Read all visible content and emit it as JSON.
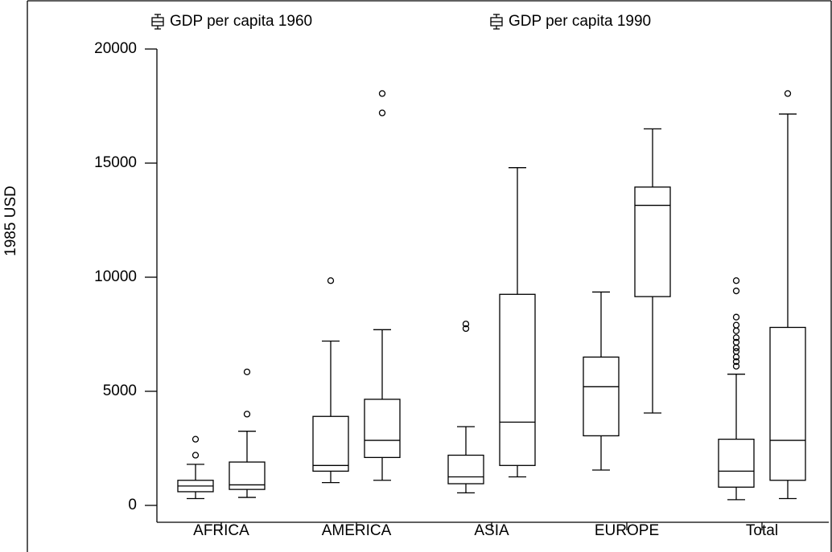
{
  "chart_data": {
    "type": "box",
    "y_label": "1985 USD",
    "categories": [
      "AFRICA",
      "AMERICA",
      "ASIA",
      "EUROPE",
      "Total"
    ],
    "ylim": [
      0,
      20000
    ],
    "yticks": [
      0,
      5000,
      10000,
      15000,
      20000
    ],
    "series": [
      {
        "name": "GDP per capita 1960",
        "color": "#000000",
        "boxes": [
          {
            "min": 300,
            "q1": 600,
            "median": 850,
            "q3": 1100,
            "max": 1800,
            "outliers": [
              2200,
              2900
            ]
          },
          {
            "min": 1000,
            "q1": 1500,
            "median": 1750,
            "q3": 3900,
            "max": 7200,
            "outliers": [
              9850
            ]
          },
          {
            "min": 550,
            "q1": 950,
            "median": 1250,
            "q3": 2200,
            "max": 3450,
            "outliers": [
              7750,
              7950
            ]
          },
          {
            "min": 1550,
            "q1": 3050,
            "median": 5200,
            "q3": 6500,
            "max": 9350
          },
          {
            "min": 250,
            "q1": 800,
            "median": 1500,
            "q3": 2900,
            "max": 5750,
            "outliers": [
              6100,
              6300,
              6500,
              6750,
              6900,
              7150,
              7350,
              7650,
              7900,
              8250,
              9400,
              9850
            ]
          }
        ]
      },
      {
        "name": "GDP per capita 1990",
        "color": "#000000",
        "boxes": [
          {
            "min": 350,
            "q1": 700,
            "median": 900,
            "q3": 1900,
            "max": 3250,
            "outliers": [
              4000,
              5850
            ]
          },
          {
            "min": 1100,
            "q1": 2100,
            "median": 2850,
            "q3": 4650,
            "max": 7700,
            "outliers": [
              17200,
              18050
            ]
          },
          {
            "min": 1250,
            "q1": 1750,
            "median": 3650,
            "q3": 9250,
            "max": 14800
          },
          {
            "min": 4050,
            "q1": 9150,
            "median": 13150,
            "q3": 13950,
            "max": 16500
          },
          {
            "min": 300,
            "q1": 1100,
            "median": 2850,
            "q3": 7800,
            "max": 17150,
            "outliers": [
              18050
            ]
          }
        ]
      }
    ]
  }
}
